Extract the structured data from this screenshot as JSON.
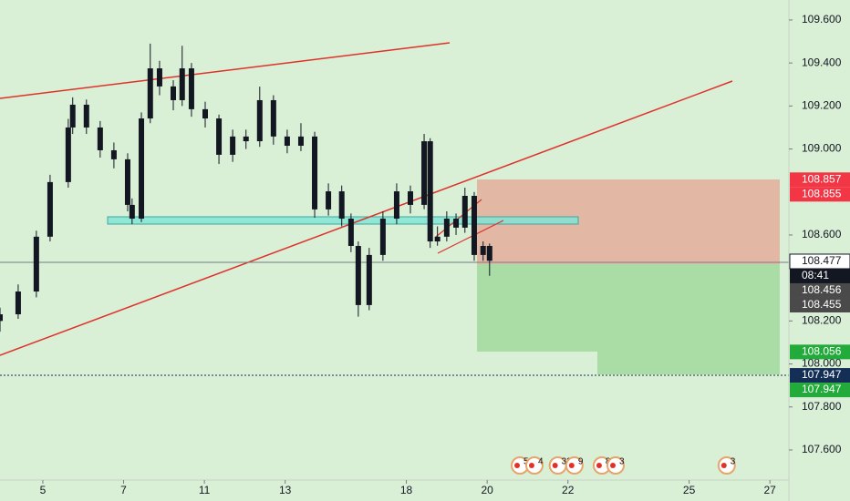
{
  "chart_data": {
    "type": "candlestick",
    "x": [
      -1.06,
      -0.61,
      -0.16,
      0.18,
      0.63,
      0.74,
      1.08,
      1.42,
      1.76,
      2.1,
      2.21,
      2.44,
      2.66,
      2.89,
      3.23,
      3.45,
      3.68,
      4.02,
      4.36,
      4.7,
      5.03,
      5.37,
      5.71,
      6.05,
      6.39,
      6.73,
      7.07,
      7.4,
      7.63,
      7.81,
      8.08,
      8.42,
      8.76,
      9.1,
      9.44,
      9.59,
      9.77,
      10.0,
      10.23,
      10.45,
      10.68,
      10.9,
      11.06
    ],
    "open": [
      108.2,
      108.231,
      108.337,
      108.592,
      108.846,
      109.1,
      109.206,
      109.1,
      108.994,
      108.952,
      108.74,
      108.676,
      109.142,
      109.375,
      109.291,
      109.227,
      109.375,
      109.185,
      109.142,
      108.973,
      109.058,
      109.036,
      109.227,
      109.058,
      109.015,
      109.058,
      108.719,
      108.803,
      108.676,
      108.549,
      108.274,
      108.507,
      108.676,
      108.803,
      108.74,
      109.036,
      108.57,
      108.592,
      108.676,
      108.634,
      108.782,
      108.507,
      108.549
    ],
    "high": [
      108.262,
      108.37,
      108.62,
      108.88,
      109.14,
      109.24,
      109.23,
      109.13,
      109.03,
      108.98,
      108.77,
      109.17,
      109.49,
      109.41,
      109.32,
      109.48,
      109.4,
      109.22,
      109.16,
      109.09,
      109.09,
      109.29,
      109.25,
      109.09,
      109.12,
      109.08,
      108.84,
      108.83,
      108.7,
      108.57,
      108.54,
      108.71,
      108.84,
      108.83,
      109.07,
      109.05,
      108.64,
      108.71,
      108.7,
      108.82,
      108.8,
      108.57,
      108.56
    ],
    "low": [
      108.15,
      108.21,
      108.31,
      108.57,
      108.82,
      109.07,
      109.07,
      108.96,
      108.91,
      108.71,
      108.65,
      108.66,
      109.12,
      109.25,
      109.18,
      109.2,
      109.15,
      109.1,
      108.93,
      108.94,
      109.0,
      109.01,
      109.02,
      108.98,
      108.99,
      108.68,
      108.69,
      108.64,
      108.52,
      108.22,
      108.25,
      108.48,
      108.65,
      108.7,
      108.72,
      108.54,
      108.55,
      108.57,
      108.6,
      108.61,
      108.48,
      108.48,
      108.41
    ],
    "close": [
      108.231,
      108.337,
      108.592,
      108.846,
      109.1,
      109.206,
      109.1,
      108.994,
      108.952,
      108.74,
      108.676,
      109.142,
      109.375,
      109.291,
      109.227,
      109.375,
      109.185,
      109.142,
      108.973,
      109.058,
      109.036,
      109.227,
      109.058,
      109.015,
      109.058,
      108.719,
      108.803,
      108.676,
      108.549,
      108.274,
      108.507,
      108.676,
      108.803,
      108.74,
      109.036,
      108.57,
      108.592,
      108.676,
      108.634,
      108.782,
      108.507,
      108.549,
      108.48
    ],
    "color": "#131722",
    "xlim": [
      -1.06,
      18.47
    ],
    "ylim": [
      107.46,
      109.693
    ],
    "xticks": [
      {
        "value": 0,
        "label": "5"
      },
      {
        "value": 2,
        "label": "7"
      },
      {
        "value": 4,
        "label": "11"
      },
      {
        "value": 6,
        "label": "13"
      },
      {
        "value": 9,
        "label": "18"
      },
      {
        "value": 11,
        "label": "20"
      },
      {
        "value": 13,
        "label": "22"
      },
      {
        "value": 16,
        "label": "25"
      },
      {
        "value": 18,
        "label": "27"
      }
    ],
    "yticks": [
      {
        "value": 109.6,
        "label": "109.600"
      },
      {
        "value": 109.4,
        "label": "109.400"
      },
      {
        "value": 109.2,
        "label": "109.200"
      },
      {
        "value": 109,
        "label": "109.000"
      },
      {
        "value": 108.6,
        "label": "108.600"
      },
      {
        "value": 108.2,
        "label": "108.200"
      },
      {
        "value": 108,
        "label": "108.000"
      },
      {
        "value": 107.8,
        "label": "107.800"
      },
      {
        "value": 107.6,
        "label": "107.600"
      }
    ],
    "price_markers": [
      {
        "value": 108.857,
        "color": "#f23645"
      },
      {
        "value": 108.855,
        "color": "#f23645"
      },
      {
        "value": 108.477,
        "color": "#ffffff"
      },
      {
        "value": 108.456,
        "color": "#4a4a4a"
      },
      {
        "value": 108.455,
        "color": "#4a4a4a"
      },
      {
        "value": 108.056,
        "color": "#22ab3a"
      },
      {
        "value": 107.947,
        "color": "#132f56"
      },
      {
        "value": 107.947,
        "color": "#22ab3a"
      }
    ],
    "countdown": "08:41",
    "events": [
      {
        "x": 11.81,
        "count": 5
      },
      {
        "x": 12.17,
        "count": 4
      },
      {
        "x": 12.75,
        "count": 33
      },
      {
        "x": 13.16,
        "count": 9
      },
      {
        "x": 13.84,
        "count": 8
      },
      {
        "x": 14.18,
        "count": 3
      },
      {
        "x": 16.93,
        "count": 3
      }
    ]
  }
}
